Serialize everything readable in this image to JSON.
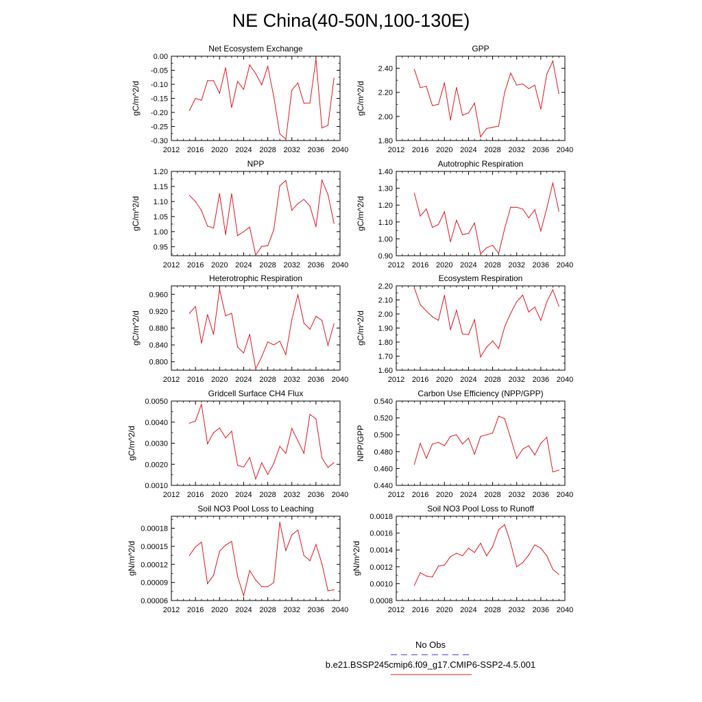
{
  "title": "NE China(40-50N,100-130E)",
  "legend": {
    "entries": [
      {
        "label": "No Obs",
        "color": "#3333cc",
        "dash": true
      },
      {
        "label": "b.e21.BSSP245cmip6.f09_g17.CMIP6-SSP2-4.5.001",
        "color": "#e0141e",
        "dash": false
      }
    ]
  },
  "line_color": "#e0141e",
  "chart_data": [
    {
      "type": "line",
      "title": "Net Ecosystem Exchange",
      "ylabel": "gC/m^2/d",
      "xlabel": "",
      "xlim": [
        2012,
        2040
      ],
      "xticks": [
        2012,
        2016,
        2020,
        2024,
        2028,
        2032,
        2036,
        2040
      ],
      "ylim": [
        -0.3,
        0.0
      ],
      "yticks": [
        -0.3,
        -0.25,
        -0.2,
        -0.15,
        -0.1,
        -0.05,
        0.0
      ],
      "ytick_labels": [
        "-0.30",
        "-0.25",
        "-0.20",
        "-0.15",
        "-0.10",
        "-0.05",
        "0.00"
      ],
      "x": [
        2015,
        2016,
        2017,
        2018,
        2019,
        2020,
        2021,
        2022,
        2023,
        2024,
        2025,
        2026,
        2027,
        2028,
        2029,
        2030,
        2031,
        2032,
        2033,
        2034,
        2035,
        2036,
        2037,
        2038,
        2039
      ],
      "values": [
        -0.193,
        -0.15,
        -0.157,
        -0.087,
        -0.087,
        -0.132,
        -0.041,
        -0.183,
        -0.09,
        -0.118,
        -0.031,
        -0.062,
        -0.102,
        -0.036,
        -0.145,
        -0.276,
        -0.295,
        -0.121,
        -0.095,
        -0.167,
        -0.166,
        -0.01,
        -0.255,
        -0.246,
        -0.078
      ]
    },
    {
      "type": "line",
      "title": "GPP",
      "ylabel": "gC/m^2/d",
      "xlabel": "",
      "xlim": [
        2012,
        2040
      ],
      "xticks": [
        2012,
        2016,
        2020,
        2024,
        2028,
        2032,
        2036,
        2040
      ],
      "ylim": [
        1.8,
        2.5
      ],
      "yticks": [
        1.8,
        2.0,
        2.2,
        2.4
      ],
      "ytick_labels": [
        "1.80",
        "2.00",
        "2.20",
        "2.40"
      ],
      "x": [
        2015,
        2016,
        2017,
        2018,
        2019,
        2020,
        2021,
        2022,
        2023,
        2024,
        2025,
        2026,
        2027,
        2028,
        2029,
        2030,
        2031,
        2032,
        2033,
        2034,
        2035,
        2036,
        2037,
        2038,
        2039
      ],
      "values": [
        2.39,
        2.24,
        2.25,
        2.09,
        2.1,
        2.28,
        1.97,
        2.24,
        2.01,
        2.03,
        2.11,
        1.83,
        1.9,
        1.91,
        1.92,
        2.2,
        2.36,
        2.26,
        2.27,
        2.23,
        2.26,
        2.06,
        2.35,
        2.46,
        2.19
      ]
    },
    {
      "type": "line",
      "title": "NPP",
      "ylabel": "gC/m^2/d",
      "xlabel": "",
      "xlim": [
        2012,
        2040
      ],
      "xticks": [
        2012,
        2016,
        2020,
        2024,
        2028,
        2032,
        2036,
        2040
      ],
      "ylim": [
        0.92,
        1.2
      ],
      "yticks": [
        0.95,
        1.0,
        1.05,
        1.1,
        1.15,
        1.2
      ],
      "ytick_labels": [
        "0.95",
        "1.00",
        "1.05",
        "1.10",
        "1.15",
        "1.20"
      ],
      "x": [
        2015,
        2016,
        2017,
        2018,
        2019,
        2020,
        2021,
        2022,
        2023,
        2024,
        2025,
        2026,
        2027,
        2028,
        2029,
        2030,
        2031,
        2032,
        2033,
        2034,
        2035,
        2036,
        2037,
        2038,
        2039
      ],
      "values": [
        1.12,
        1.1,
        1.07,
        1.018,
        1.012,
        1.126,
        0.99,
        1.126,
        0.987,
        1.0,
        1.015,
        0.922,
        0.951,
        0.953,
        1.006,
        1.152,
        1.17,
        1.071,
        1.093,
        1.107,
        1.085,
        1.016,
        1.171,
        1.123,
        1.028
      ]
    },
    {
      "type": "line",
      "title": "Autotrophic Respiration",
      "ylabel": "gC/m^2/d",
      "xlabel": "",
      "xlim": [
        2012,
        2040
      ],
      "xticks": [
        2012,
        2016,
        2020,
        2024,
        2028,
        2032,
        2036,
        2040
      ],
      "ylim": [
        0.9,
        1.4
      ],
      "yticks": [
        0.9,
        1.0,
        1.1,
        1.2,
        1.3,
        1.4
      ],
      "ytick_labels": [
        "0.90",
        "1.00",
        "1.10",
        "1.20",
        "1.30",
        "1.40"
      ],
      "x": [
        2015,
        2016,
        2017,
        2018,
        2019,
        2020,
        2021,
        2022,
        2023,
        2024,
        2025,
        2026,
        2027,
        2028,
        2029,
        2030,
        2031,
        2032,
        2033,
        2034,
        2035,
        2036,
        2037,
        2038,
        2039
      ],
      "values": [
        1.27,
        1.135,
        1.177,
        1.068,
        1.085,
        1.16,
        0.983,
        1.11,
        1.025,
        1.032,
        1.094,
        0.91,
        0.947,
        0.962,
        0.913,
        1.06,
        1.188,
        1.187,
        1.177,
        1.124,
        1.173,
        1.046,
        1.182,
        1.332,
        1.164
      ]
    },
    {
      "type": "line",
      "title": "Heterotrophic Respiration",
      "ylabel": "gC/m^2/d",
      "xlabel": "",
      "xlim": [
        2012,
        2040
      ],
      "xticks": [
        2012,
        2016,
        2020,
        2024,
        2028,
        2032,
        2036,
        2040
      ],
      "ylim": [
        0.78,
        0.98
      ],
      "yticks": [
        0.8,
        0.84,
        0.88,
        0.92,
        0.96
      ],
      "ytick_labels": [
        "0.800",
        "0.840",
        "0.880",
        "0.920",
        "0.960"
      ],
      "x": [
        2015,
        2016,
        2017,
        2018,
        2019,
        2020,
        2021,
        2022,
        2023,
        2024,
        2025,
        2026,
        2027,
        2028,
        2029,
        2030,
        2031,
        2032,
        2033,
        2034,
        2035,
        2036,
        2037,
        2038,
        2039
      ],
      "values": [
        0.915,
        0.931,
        0.844,
        0.912,
        0.865,
        0.972,
        0.909,
        0.915,
        0.835,
        0.821,
        0.865,
        0.783,
        0.812,
        0.847,
        0.84,
        0.849,
        0.817,
        0.9,
        0.959,
        0.892,
        0.877,
        0.908,
        0.898,
        0.839,
        0.89
      ]
    },
    {
      "type": "line",
      "title": "Ecosystem Respiration",
      "ylabel": "gC/m^2/d",
      "xlabel": "",
      "xlim": [
        2012,
        2040
      ],
      "xticks": [
        2012,
        2016,
        2020,
        2024,
        2028,
        2032,
        2036,
        2040
      ],
      "ylim": [
        1.6,
        2.2
      ],
      "yticks": [
        1.6,
        1.7,
        1.8,
        1.9,
        2.0,
        2.1,
        2.2
      ],
      "ytick_labels": [
        "1.60",
        "1.70",
        "1.80",
        "1.90",
        "2.00",
        "2.10",
        "2.20"
      ],
      "x": [
        2015,
        2016,
        2017,
        2018,
        2019,
        2020,
        2021,
        2022,
        2023,
        2024,
        2025,
        2026,
        2027,
        2028,
        2029,
        2030,
        2031,
        2032,
        2033,
        2034,
        2035,
        2036,
        2037,
        2038,
        2039
      ],
      "values": [
        2.185,
        2.066,
        2.021,
        1.98,
        1.955,
        2.133,
        1.889,
        2.026,
        1.858,
        1.853,
        1.959,
        1.694,
        1.764,
        1.808,
        1.754,
        1.909,
        2.005,
        2.087,
        2.134,
        2.014,
        2.05,
        1.954,
        2.086,
        2.172,
        2.056
      ]
    },
    {
      "type": "line",
      "title": "Gridcell Surface CH4 Flux",
      "ylabel": "gC/m^2/d",
      "xlabel": "",
      "xlim": [
        2012,
        2040
      ],
      "xticks": [
        2012,
        2016,
        2020,
        2024,
        2028,
        2032,
        2036,
        2040
      ],
      "ylim": [
        0.001,
        0.005
      ],
      "yticks": [
        0.001,
        0.002,
        0.003,
        0.004,
        0.005
      ],
      "ytick_labels": [
        "0.0010",
        "0.0020",
        "0.0030",
        "0.0040",
        "0.0050"
      ],
      "x": [
        2015,
        2016,
        2017,
        2018,
        2019,
        2020,
        2021,
        2022,
        2023,
        2024,
        2025,
        2026,
        2027,
        2028,
        2029,
        2030,
        2031,
        2032,
        2033,
        2034,
        2035,
        2036,
        2037,
        2038,
        2039
      ],
      "values": [
        0.00395,
        0.00405,
        0.00485,
        0.00297,
        0.0035,
        0.00372,
        0.00325,
        0.00357,
        0.00195,
        0.00187,
        0.00232,
        0.0013,
        0.00207,
        0.00152,
        0.00204,
        0.00285,
        0.00252,
        0.0037,
        0.00312,
        0.00252,
        0.00437,
        0.00415,
        0.0023,
        0.00185,
        0.00208
      ]
    },
    {
      "type": "line",
      "title": "Carbon Use Efficiency (NPP/GPP)",
      "ylabel": "NPP/GPP",
      "xlabel": "",
      "xlim": [
        2012,
        2040
      ],
      "xticks": [
        2012,
        2016,
        2020,
        2024,
        2028,
        2032,
        2036,
        2040
      ],
      "ylim": [
        0.44,
        0.54
      ],
      "yticks": [
        0.44,
        0.46,
        0.48,
        0.5,
        0.52,
        0.54
      ],
      "ytick_labels": [
        "0.440",
        "0.460",
        "0.480",
        "0.500",
        "0.520",
        "0.540"
      ],
      "x": [
        2015,
        2016,
        2017,
        2018,
        2019,
        2020,
        2021,
        2022,
        2023,
        2024,
        2025,
        2026,
        2027,
        2028,
        2029,
        2030,
        2031,
        2032,
        2033,
        2034,
        2035,
        2036,
        2037,
        2038,
        2039
      ],
      "values": [
        0.465,
        0.49,
        0.472,
        0.489,
        0.491,
        0.487,
        0.498,
        0.5,
        0.489,
        0.496,
        0.477,
        0.498,
        0.5,
        0.502,
        0.522,
        0.519,
        0.496,
        0.472,
        0.483,
        0.487,
        0.476,
        0.49,
        0.497,
        0.456,
        0.458
      ]
    },
    {
      "type": "line",
      "title": "Soil NO3 Pool Loss to Leaching",
      "ylabel": "gN/m^2/d",
      "xlabel": "",
      "xlim": [
        2012,
        2040
      ],
      "xticks": [
        2012,
        2016,
        2020,
        2024,
        2028,
        2032,
        2036,
        2040
      ],
      "ylim": [
        6e-05,
        0.0002
      ],
      "yticks": [
        6e-05,
        9e-05,
        0.00012,
        0.00015,
        0.00018
      ],
      "ytick_labels": [
        "0.00006",
        "0.00009",
        "0.00012",
        "0.00015",
        "0.00018"
      ],
      "x": [
        2015,
        2016,
        2017,
        2018,
        2019,
        2020,
        2021,
        2022,
        2023,
        2024,
        2025,
        2026,
        2027,
        2028,
        2029,
        2030,
        2031,
        2032,
        2033,
        2034,
        2035,
        2036,
        2037,
        2038,
        2039
      ],
      "values": [
        0.000135,
        0.000149,
        0.000157,
        8.8e-05,
        0.000102,
        0.000142,
        0.000152,
        0.000158,
        0.0001,
        6.8e-05,
        0.00011,
        9.4e-05,
        8.3e-05,
        8.3e-05,
        9e-05,
        0.00019,
        0.000143,
        0.000169,
        0.000177,
        0.000135,
        0.000126,
        0.000153,
        0.000121,
        7.6e-05,
        7.8e-05
      ]
    },
    {
      "type": "line",
      "title": "Soil NO3 Pool Loss to Runoff",
      "ylabel": "gN/m^2/d",
      "xlabel": "",
      "xlim": [
        2012,
        2040
      ],
      "xticks": [
        2012,
        2016,
        2020,
        2024,
        2028,
        2032,
        2036,
        2040
      ],
      "ylim": [
        0.0008,
        0.0018
      ],
      "yticks": [
        0.0008,
        0.001,
        0.0012,
        0.0014,
        0.0016,
        0.0018
      ],
      "ytick_labels": [
        "0.0008",
        "0.0010",
        "0.0012",
        "0.0014",
        "0.0016",
        "0.0018"
      ],
      "x": [
        2015,
        2016,
        2017,
        2018,
        2019,
        2020,
        2021,
        2022,
        2023,
        2024,
        2025,
        2026,
        2027,
        2028,
        2029,
        2030,
        2031,
        2032,
        2033,
        2034,
        2035,
        2036,
        2037,
        2038,
        2039
      ],
      "values": [
        0.00098,
        0.00113,
        0.00109,
        0.00108,
        0.00121,
        0.00122,
        0.00132,
        0.00136,
        0.00133,
        0.00142,
        0.00137,
        0.00148,
        0.00133,
        0.00144,
        0.00164,
        0.0017,
        0.00148,
        0.0012,
        0.00125,
        0.00134,
        0.00146,
        0.00142,
        0.00133,
        0.00117,
        0.00111
      ]
    }
  ]
}
